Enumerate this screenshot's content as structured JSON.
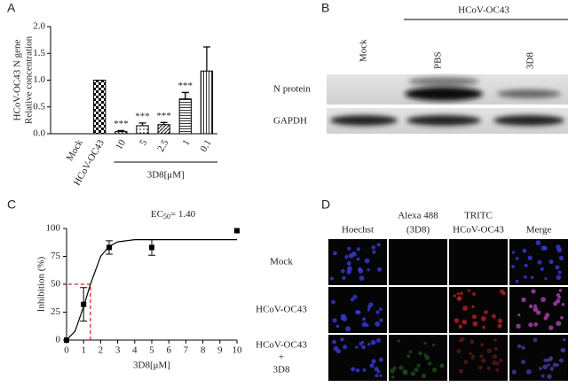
{
  "panel_labels": [
    "A",
    "B",
    "C",
    "D"
  ],
  "chart_data": [
    {
      "type": "bar",
      "categories": [
        "Mock",
        "HCoV-OC43",
        "10",
        "5",
        "2.5",
        "1",
        "0.1"
      ],
      "values": [
        0,
        1,
        0.04,
        0.15,
        0.17,
        0.65,
        1.17
      ],
      "errors": [
        0,
        0,
        0.02,
        0.05,
        0.04,
        0.12,
        0.45
      ],
      "annotations": [
        null,
        null,
        "***",
        "***",
        "***",
        "***",
        null
      ],
      "group_label": "3D8[μM]",
      "ylabel": [
        "HCoV-OC43 N gene",
        "Relative concentration"
      ],
      "ylim": [
        0,
        2
      ],
      "yticks": [
        {
          "value": 0,
          "label": "0.0"
        },
        0.5,
        {
          "value": 1,
          "label": "1.0"
        },
        1.5,
        {
          "value": 2,
          "label": "2.0"
        }
      ],
      "color": "#000000"
    },
    {
      "type": "scatter",
      "title": {
        "prefix": "EC",
        "subscript": "50",
        "suffix": "= 1.40"
      },
      "x": [
        0,
        1,
        2.5,
        5,
        10
      ],
      "y": [
        0,
        32,
        83,
        83,
        98
      ],
      "errors": [
        0,
        15,
        6,
        7,
        0
      ],
      "fit": {
        "x": [
          0,
          0.5,
          1,
          1.4,
          2,
          2.5,
          3,
          4,
          5,
          6,
          8,
          10
        ],
        "y": [
          0,
          8,
          30,
          50,
          75,
          84,
          88,
          90,
          90,
          90,
          90,
          90
        ]
      },
      "ec50_point": {
        "x": 1.4,
        "y": 50
      },
      "xlim": [
        0,
        10
      ],
      "xticks": [
        0,
        1,
        2,
        3,
        4,
        5,
        6,
        7,
        8,
        9,
        10
      ],
      "ylim": [
        0,
        100
      ],
      "yticks": [
        0,
        25,
        50,
        75,
        100
      ],
      "xlabel": "3D8[μM]",
      "ylabel": "Inhibition (%)",
      "color": "#000000",
      "ec50_color": "#e02020"
    }
  ],
  "blot": {
    "mock": "Mock",
    "group": "HCoV-OC43",
    "pbs": "PBS",
    "treated": "3D8",
    "rows": [
      "N protein",
      "GAPDH"
    ]
  },
  "microscopy": {
    "columns": [
      [
        "Hoechst"
      ],
      [
        "Alexa 488",
        "(3D8)"
      ],
      [
        "TRITC",
        "HCoV-OC43"
      ],
      [
        "Merge"
      ]
    ],
    "rows": [
      [
        "Mock"
      ],
      [
        "HCoV-OC43"
      ],
      [
        "HCoV-OC43",
        "+",
        "3D8"
      ]
    ]
  }
}
